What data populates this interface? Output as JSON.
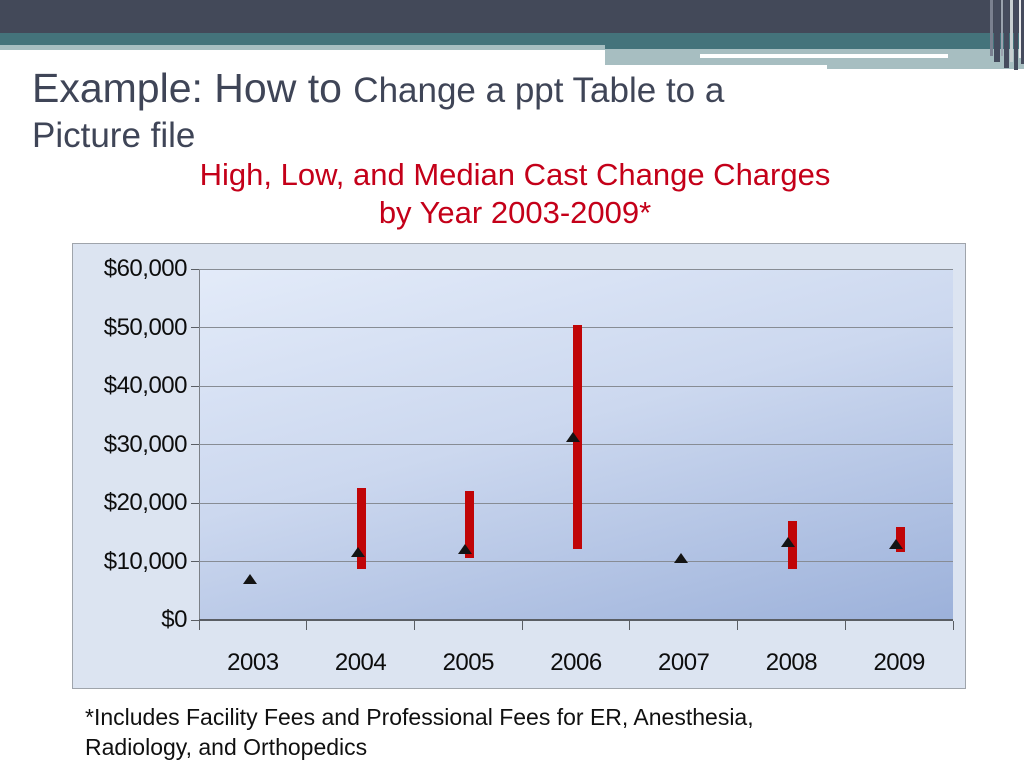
{
  "slide": {
    "title_primary": "Example: How to ",
    "title_secondary_line1": "Change a ppt Table to a",
    "title_secondary_line2": "Picture file",
    "subtitle_line1": "High, Low, and Median Cast Change Charges",
    "subtitle_line2": "by Year 2003-2009*",
    "footnote_line1": "*Includes Facility Fees and Professional Fees for ER, Anesthesia,",
    "footnote_line2": "Radiology, and Orthopedics"
  },
  "colors": {
    "header_dark": "#434959",
    "header_teal": "#44737b",
    "header_sage": "#a7bec1",
    "title_text": "#3f4557",
    "subtitle_red": "#c40019",
    "chart_background": "#dce4f1",
    "plot_gradient_top": "#e3ebf9",
    "plot_gradient_bottom": "#9cb1da",
    "gridline_gray": "#878c94",
    "bar_red": "#c00507",
    "marker_black": "#141414"
  },
  "chart_data": {
    "type": "bar",
    "subtype": "high-low-range-bars-with-median-markers",
    "title": "High, Low, and Median Cast Change Charges by Year 2003-2009*",
    "xlabel": "",
    "ylabel": "",
    "categories": [
      "2003",
      "2004",
      "2005",
      "2006",
      "2007",
      "2008",
      "2009"
    ],
    "series": [
      {
        "name": "High",
        "values": [
          null,
          22600,
          22100,
          50400,
          null,
          17000,
          15900
        ]
      },
      {
        "name": "Low",
        "values": [
          null,
          8700,
          10600,
          12200,
          null,
          8700,
          11700
        ]
      },
      {
        "name": "Median",
        "values": [
          7000,
          11600,
          12200,
          31200,
          10600,
          13400,
          13000
        ]
      }
    ],
    "ylim": [
      0,
      60000
    ],
    "ytick_step": 10000,
    "ytick_labels": [
      "$0",
      "$10,000",
      "$20,000",
      "$30,000",
      "$40,000",
      "$50,000",
      "$60,000"
    ],
    "grid": true,
    "legend_position": "none"
  }
}
